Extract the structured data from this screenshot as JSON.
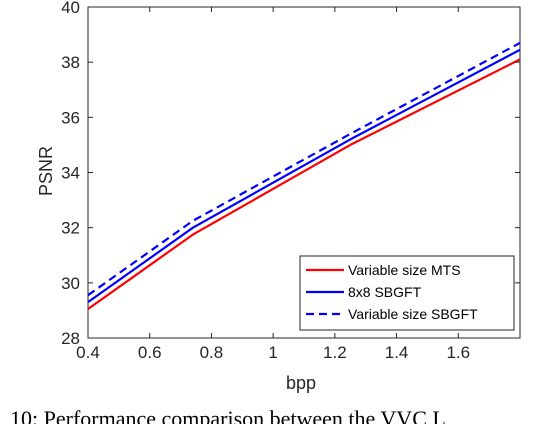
{
  "caption": "10: Performance comparison between the VVC L",
  "chart_data": {
    "type": "line",
    "xlabel": "bpp",
    "ylabel": "PSNR",
    "xlim": [
      0.4,
      1.8
    ],
    "ylim": [
      28,
      40
    ],
    "xticks": [
      0.4,
      0.6,
      0.8,
      1,
      1.2,
      1.4,
      1.6
    ],
    "xtick_labels": [
      "0.4",
      "0.6",
      "0.8",
      "1",
      "1.2",
      "1.4",
      "1.6"
    ],
    "yticks": [
      28,
      30,
      32,
      34,
      36,
      38,
      40
    ],
    "ytick_labels": [
      "28",
      "30",
      "32",
      "34",
      "36",
      "38",
      "40"
    ],
    "grid": false,
    "legend_position": "bottom-right",
    "series": [
      {
        "name": "Variable size MTS",
        "color": "#ff0000",
        "dash": "solid",
        "x": [
          0.4,
          0.74,
          1.25,
          1.8
        ],
        "y": [
          29.05,
          31.75,
          35.0,
          38.1
        ]
      },
      {
        "name": "8x8 SBGFT",
        "color": "#0000ff",
        "dash": "solid",
        "x": [
          0.4,
          0.74,
          1.25,
          1.8
        ],
        "y": [
          29.3,
          32.0,
          35.2,
          38.45
        ]
      },
      {
        "name": "Variable size SBGFT",
        "color": "#0000ff",
        "dash": "dashed",
        "x": [
          0.4,
          0.74,
          1.25,
          1.8
        ],
        "y": [
          29.55,
          32.25,
          35.4,
          38.7
        ]
      }
    ]
  }
}
